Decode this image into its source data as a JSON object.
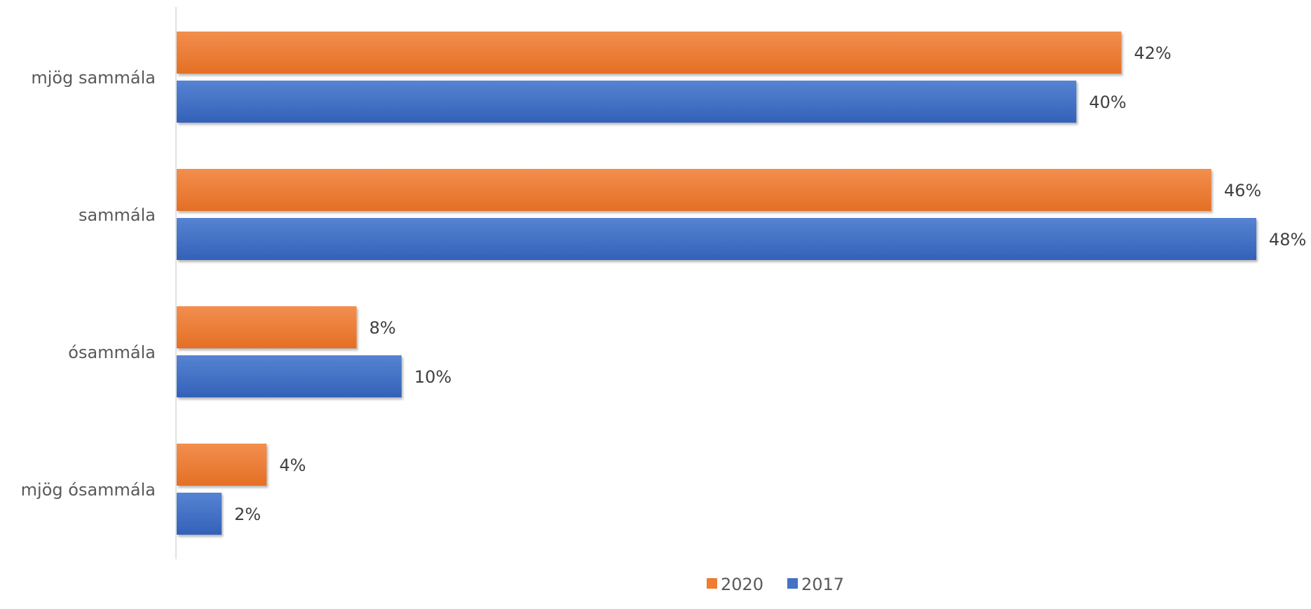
{
  "chart_data": {
    "type": "bar",
    "orientation": "horizontal",
    "categories": [
      "mjög sammála",
      "sammála",
      "ósammála",
      "mjög ósammála"
    ],
    "series": [
      {
        "name": "2020",
        "values": [
          42,
          46,
          8,
          4
        ],
        "labels": [
          "42%",
          "46%",
          "8%",
          "4%"
        ],
        "color": "#ED7D31"
      },
      {
        "name": "2017",
        "values": [
          40,
          48,
          10,
          2
        ],
        "labels": [
          "40%",
          "48%",
          "10%",
          "2%"
        ],
        "color": "#4472C4"
      }
    ],
    "unit": "%",
    "xlim": [
      0,
      48
    ],
    "grid": false,
    "legend": "bottom-center",
    "title": "",
    "xlabel": "",
    "ylabel": ""
  }
}
